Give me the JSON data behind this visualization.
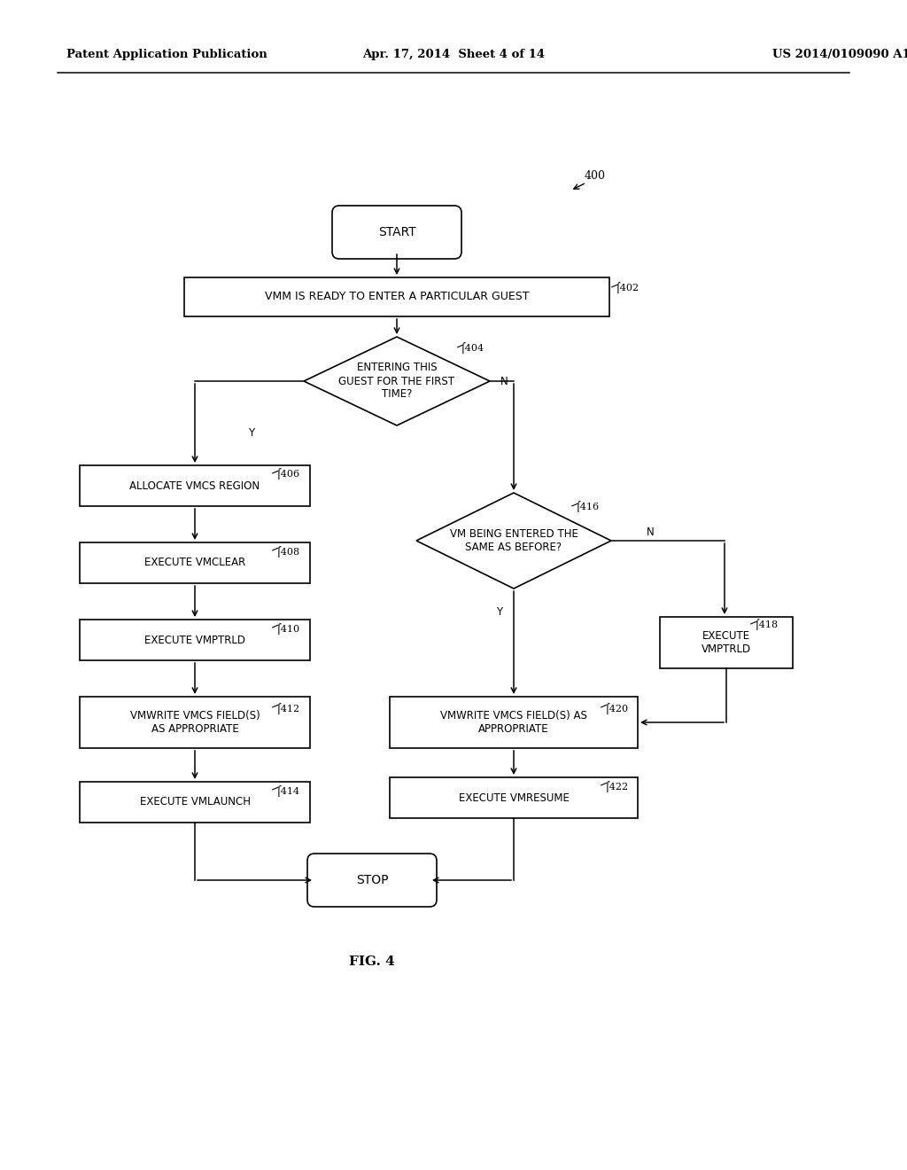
{
  "bg_color": "#ffffff",
  "header_left": "Patent Application Publication",
  "header_mid": "Apr. 17, 2014  Sheet 4 of 14",
  "header_right": "US 2014/0109090 A1",
  "fig_label": "FIG. 4"
}
